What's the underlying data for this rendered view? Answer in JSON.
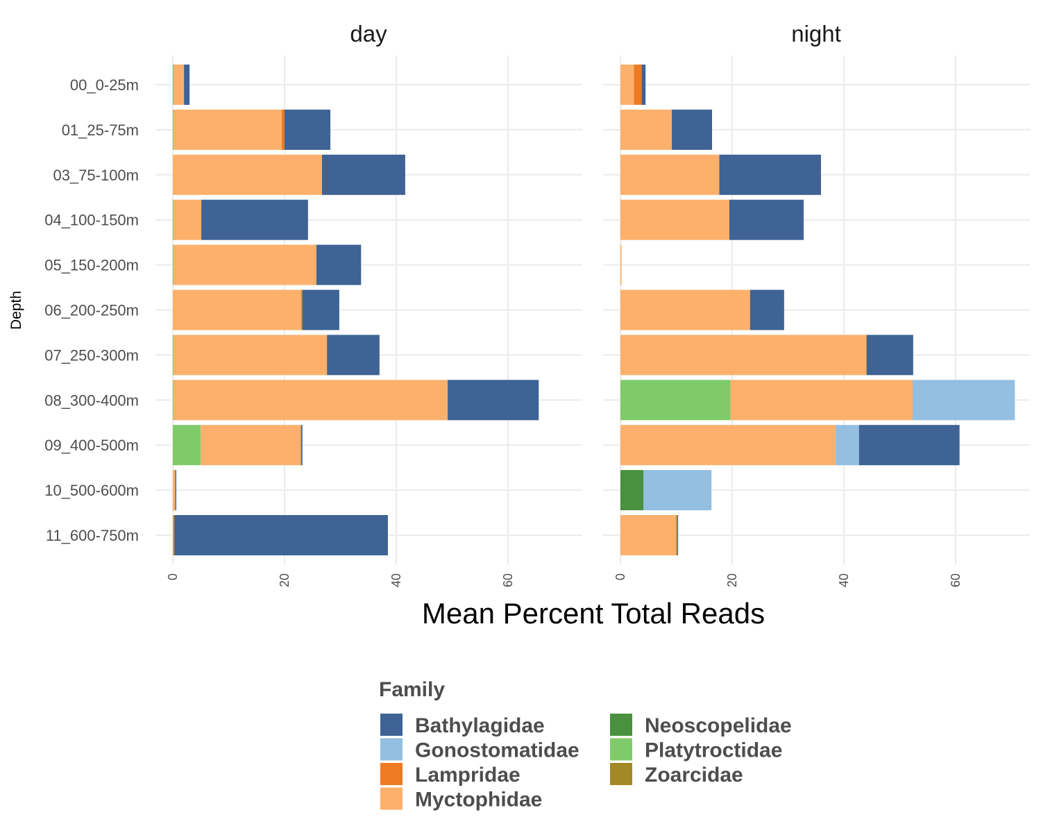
{
  "chart_data": {
    "type": "bar",
    "orientation": "horizontal",
    "stacked": true,
    "xlabel": "Mean Percent Total Reads",
    "ylabel": "Depth",
    "xlim": [
      0,
      72
    ],
    "xticks": [
      "0",
      "20",
      "40",
      "60"
    ],
    "grid": true,
    "legend": {
      "title": "Family",
      "placement": "bottom"
    },
    "categories": [
      "00_0-25m",
      "01_25-75m",
      "03_75-100m",
      "04_100-150m",
      "05_150-200m",
      "06_200-250m",
      "07_250-300m",
      "08_300-400m",
      "09_400-500m",
      "10_500-600m",
      "11_600-750m"
    ],
    "families": [
      {
        "name": "Neoscopelidae",
        "color": "#4a913f"
      },
      {
        "name": "Platytroctidae",
        "color": "#7fcb6a"
      },
      {
        "name": "Myctophidae",
        "color": "#fdb06c"
      },
      {
        "name": "Lampridae",
        "color": "#ee7a24"
      },
      {
        "name": "Gonostomatidae",
        "color": "#93bfe0"
      },
      {
        "name": "Zoarcidae",
        "color": "#a38925"
      },
      {
        "name": "Bathylagidae",
        "color": "#3e6394"
      }
    ],
    "legend_order": [
      "Bathylagidae",
      "Gonostomatidae",
      "Lampridae",
      "Myctophidae",
      "Neoscopelidae",
      "Platytroctidae",
      "Zoarcidae"
    ],
    "panels": [
      {
        "title": "day",
        "series": [
          {
            "name": "Neoscopelidae",
            "values": [
              0,
              0,
              0,
              0,
              0,
              0,
              0,
              0,
              0,
              0,
              0
            ]
          },
          {
            "name": "Platytroctidae",
            "values": [
              0.2,
              0.1,
              0,
              0.1,
              0.1,
              0,
              0.1,
              0.1,
              5.0,
              0,
              0
            ]
          },
          {
            "name": "Myctophidae",
            "values": [
              1.8,
              19.4,
              26.7,
              5.0,
              25.6,
              23.0,
              27.5,
              49.1,
              17.9,
              0.4,
              0.1
            ]
          },
          {
            "name": "Lampridae",
            "values": [
              0,
              0.5,
              0,
              0,
              0,
              0,
              0,
              0,
              0,
              0,
              0
            ]
          },
          {
            "name": "Gonostomatidae",
            "values": [
              0,
              0,
              0,
              0,
              0,
              0,
              0,
              0,
              0,
              0,
              0
            ]
          },
          {
            "name": "Zoarcidae",
            "values": [
              0,
              0,
              0,
              0,
              0,
              0.2,
              0,
              0,
              0.1,
              0.1,
              0.2
            ]
          },
          {
            "name": "Bathylagidae",
            "values": [
              1.0,
              8.2,
              14.9,
              19.1,
              8.0,
              6.6,
              9.4,
              16.3,
              0.2,
              0.1,
              38.2
            ]
          }
        ]
      },
      {
        "title": "night",
        "series": [
          {
            "name": "Neoscopelidae",
            "values": [
              0,
              0,
              0,
              0,
              0,
              0,
              0,
              0,
              0,
              4.1,
              0
            ]
          },
          {
            "name": "Platytroctidae",
            "values": [
              0,
              0,
              0,
              0,
              0,
              0,
              0,
              19.7,
              0,
              0,
              0
            ]
          },
          {
            "name": "Myctophidae",
            "values": [
              2.4,
              9.2,
              17.7,
              19.5,
              0.2,
              23.2,
              44.0,
              32.6,
              38.5,
              0,
              10.0
            ]
          },
          {
            "name": "Lampridae",
            "values": [
              1.4,
              0,
              0,
              0,
              0,
              0,
              0,
              0,
              0,
              0,
              0
            ]
          },
          {
            "name": "Gonostomatidae",
            "values": [
              0,
              0,
              0,
              0,
              0,
              0,
              0,
              18.3,
              4.2,
              12.2,
              0
            ]
          },
          {
            "name": "Zoarcidae",
            "values": [
              0,
              0,
              0,
              0,
              0,
              0,
              0.1,
              0,
              0,
              0,
              0.2
            ]
          },
          {
            "name": "Bathylagidae",
            "values": [
              0.7,
              7.2,
              18.2,
              13.3,
              0,
              6.1,
              8.3,
              0,
              18.0,
              0,
              0.1
            ]
          }
        ]
      }
    ]
  }
}
